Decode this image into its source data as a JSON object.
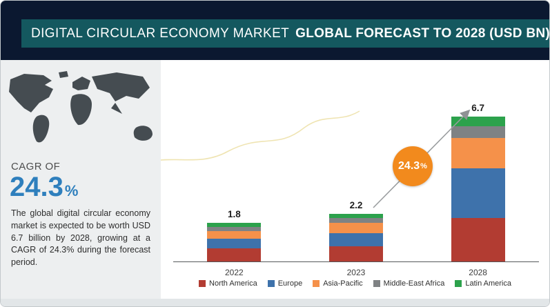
{
  "header": {
    "title_regular": "DIGITAL CIRCULAR ECONOMY MARKET",
    "title_bold": "GLOBAL FORECAST TO 2028 (USD BN)",
    "band_color": "#14585f"
  },
  "cagr_panel": {
    "label": "CAGR OF",
    "value": "24.3",
    "unit": "%",
    "accent_color": "#2e7fbd",
    "description": "The global digital circular economy market is expected to be worth USD 6.7 billion by 2028, growing at a CAGR of 24.3% during the forecast period."
  },
  "chart_data": {
    "type": "bar",
    "stacked": true,
    "title": "Digital Circular Economy Market, Global Forecast to 2028 (USD BN)",
    "categories": [
      "2022",
      "2023",
      "2028"
    ],
    "totals": [
      1.8,
      2.2,
      6.7
    ],
    "value_labels": [
      "1.8",
      "2.2",
      "6.7"
    ],
    "series": [
      {
        "name": "North America",
        "color": "#b23c32",
        "values": [
          0.6,
          0.7,
          2.0
        ]
      },
      {
        "name": "Europe",
        "color": "#3e72ab",
        "values": [
          0.45,
          0.6,
          2.3
        ]
      },
      {
        "name": "Asia-Pacific",
        "color": "#f5914a",
        "values": [
          0.35,
          0.5,
          1.4
        ]
      },
      {
        "name": "Middle-East Africa",
        "color": "#7f8284",
        "values": [
          0.2,
          0.2,
          0.55
        ]
      },
      {
        "name": "Latin America",
        "color": "#2ca24c",
        "values": [
          0.2,
          0.2,
          0.45
        ]
      }
    ],
    "badge": {
      "value": "24.3",
      "unit": "%",
      "color": "#f28a1d"
    },
    "legend_position": "bottom",
    "axis": {
      "baseline": true,
      "gridlines": false,
      "ylim": [
        0,
        7
      ]
    }
  }
}
